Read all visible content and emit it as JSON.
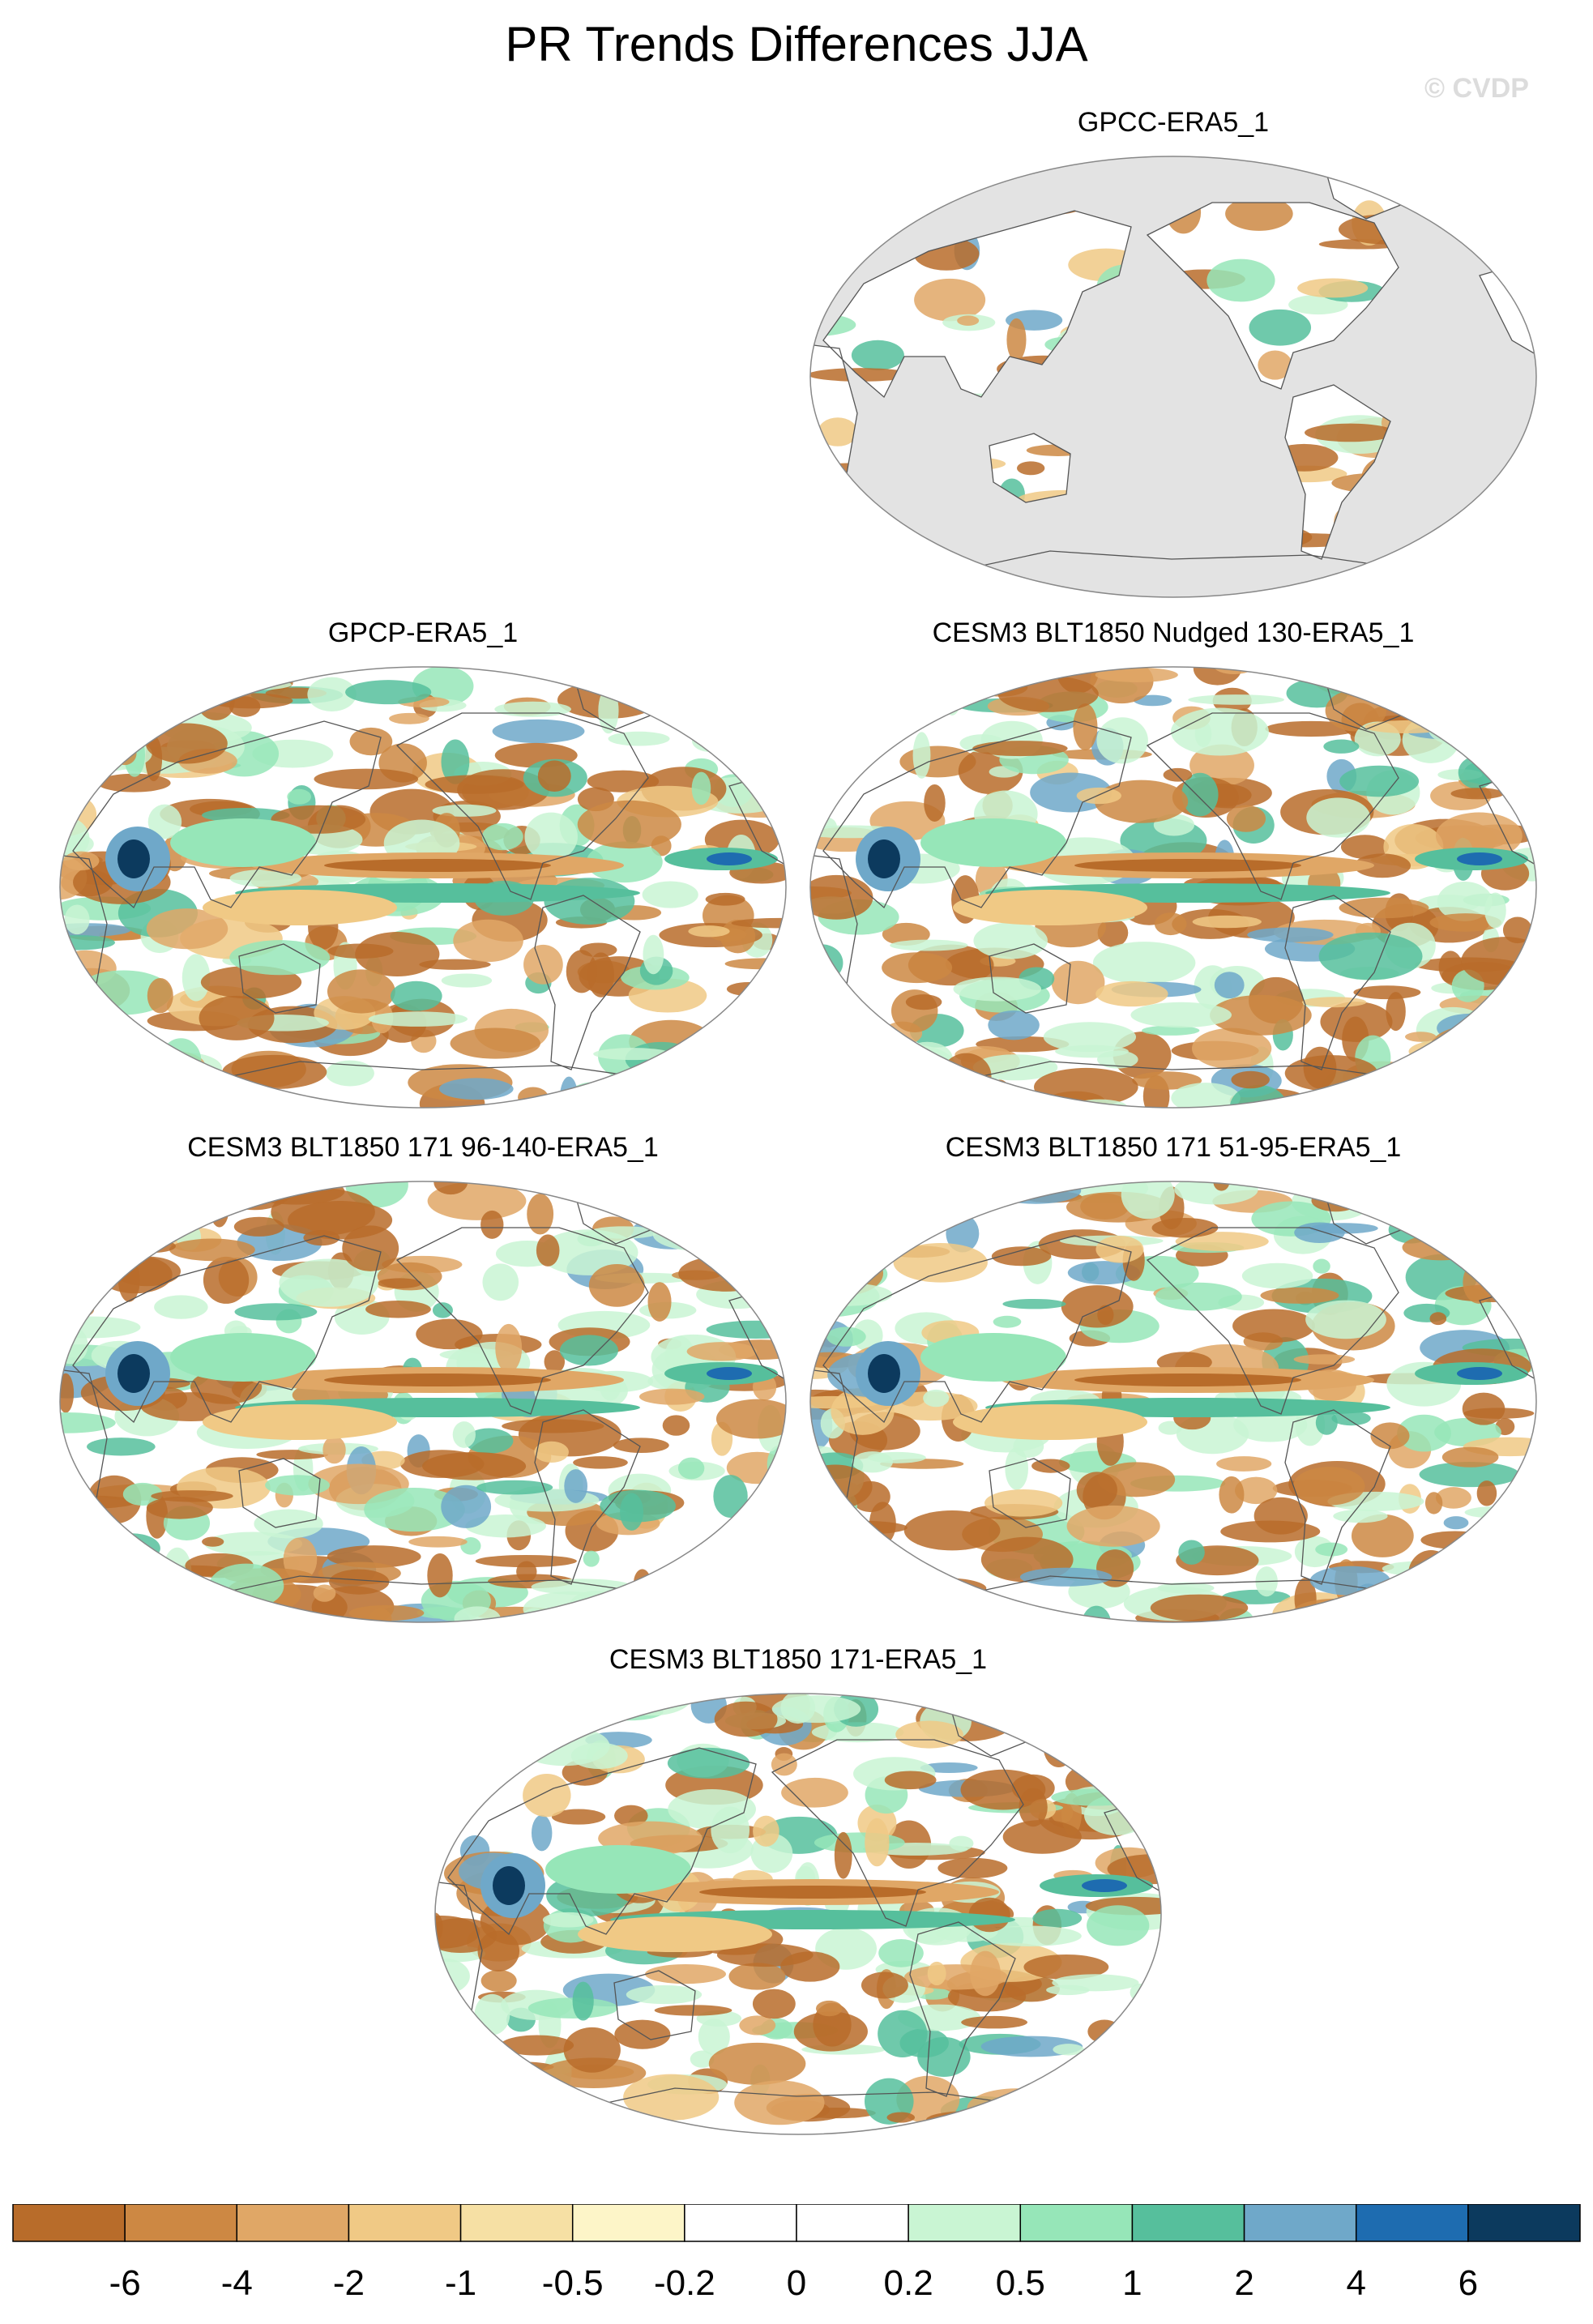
{
  "title": "PR Trends Differences JJA",
  "watermark": "© CVDP",
  "panels": [
    {
      "id": "p1",
      "title": "GPCC-ERA5_1",
      "kind": "land"
    },
    {
      "id": "p2",
      "title": "GPCP-ERA5_1",
      "kind": "full"
    },
    {
      "id": "p3",
      "title": "CESM3 BLT1850 Nudged 130-ERA5_1",
      "kind": "full"
    },
    {
      "id": "p4",
      "title": "CESM3 BLT1850 171 96-140-ERA5_1",
      "kind": "full"
    },
    {
      "id": "p5",
      "title": "CESM3 BLT1850 171 51-95-ERA5_1",
      "kind": "full"
    },
    {
      "id": "p6",
      "title": "CESM3 BLT1850 171-ERA5_1",
      "kind": "full"
    }
  ],
  "colorbar": {
    "levels": [
      "-6",
      "-4",
      "-2",
      "-1",
      "-0.5",
      "-0.2",
      "0",
      "0.2",
      "0.5",
      "1",
      "2",
      "4",
      "6"
    ],
    "colors": [
      "#b86c2a",
      "#cd8843",
      "#e0a766",
      "#f0c985",
      "#f6e0a4",
      "#fdf5c8",
      "#ffffff",
      "#ffffff",
      "#c9f5d3",
      "#96e6b8",
      "#56bf9c",
      "#6fa8c9",
      "#1e6cb0",
      "#0c3a5e"
    ]
  },
  "colors": {
    "land_mask": "#e3e3e3",
    "coast": "#555555",
    "border": "#888888"
  }
}
